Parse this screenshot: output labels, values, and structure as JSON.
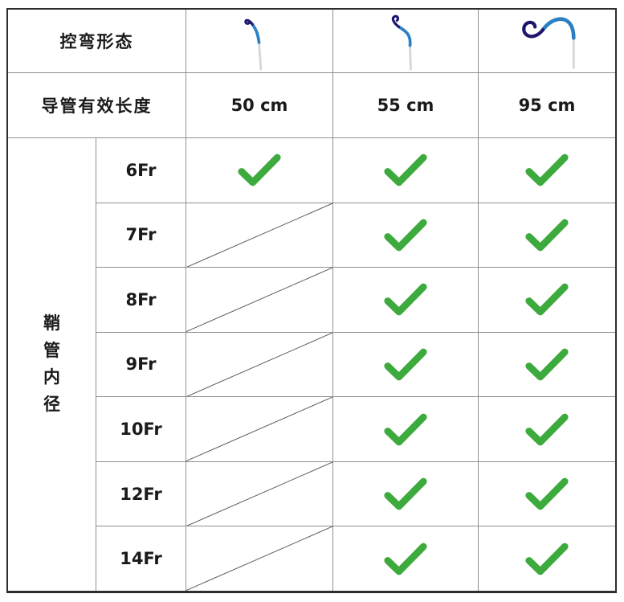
{
  "table": {
    "bend_shape_label": "控弯形态",
    "length_label": "导管有效长度",
    "sheath_label": "鞘管内径",
    "columns": [
      {
        "length": "50 cm",
        "curve_icon": "catheter-curve-small-hook-icon"
      },
      {
        "length": "55 cm",
        "curve_icon": "catheter-curve-large-hook-icon"
      },
      {
        "length": "95 cm",
        "curve_icon": "catheter-curve-pigtail-icon"
      }
    ],
    "rows": [
      {
        "size": "6Fr",
        "availability": [
          true,
          true,
          true
        ]
      },
      {
        "size": "7Fr",
        "availability": [
          false,
          true,
          true
        ]
      },
      {
        "size": "8Fr",
        "availability": [
          false,
          true,
          true
        ]
      },
      {
        "size": "9Fr",
        "availability": [
          false,
          true,
          true
        ]
      },
      {
        "size": "10Fr",
        "availability": [
          false,
          true,
          true
        ]
      },
      {
        "size": "12Fr",
        "availability": [
          false,
          true,
          true
        ]
      },
      {
        "size": "14Fr",
        "availability": [
          false,
          true,
          true
        ]
      }
    ],
    "colors": {
      "check_green": "#3caa3c",
      "curve_blue": "#2b80c4",
      "curve_navy": "#1d176e",
      "curve_gray": "#d6d6d6",
      "grid_line": "#8f8f8f",
      "outer_border": "#2e2e2e",
      "diagonal_line": "#5a5a5a"
    }
  }
}
